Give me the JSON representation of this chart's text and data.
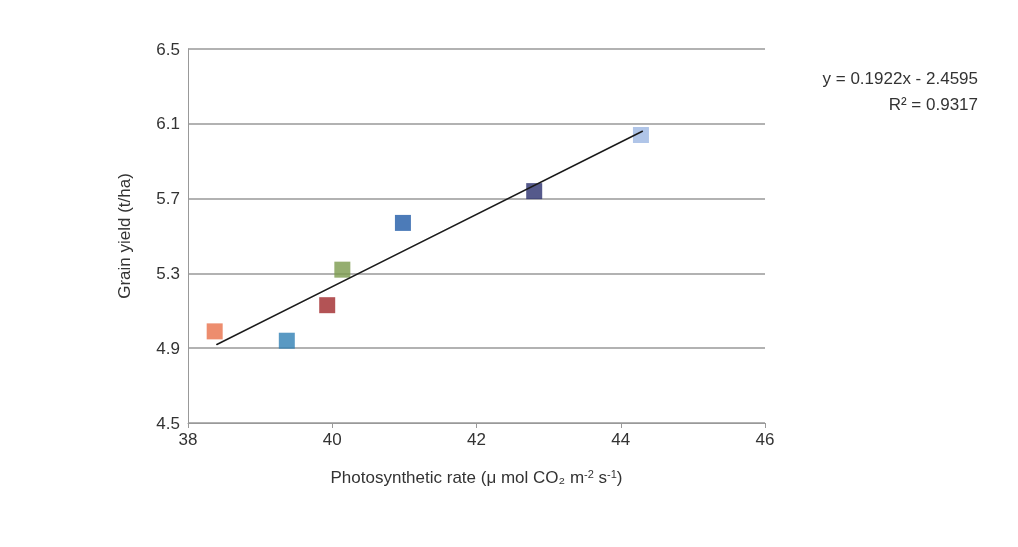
{
  "chart_data": {
    "type": "scatter",
    "xlabel": "Photosynthetic rate (μ mol CO₂ m$^{-2}$ s$^{-1}$)",
    "ylabel": "Grain yield (t/ha)",
    "annotations": [
      "y = 0.1922x - 2.4595",
      "R² = 0.9317"
    ],
    "series": [
      {
        "marker": "square",
        "x": [
          38.37,
          39.37,
          39.93,
          40.14,
          40.98,
          42.8,
          44.28
        ],
        "values": [
          4.99,
          4.94,
          5.13,
          5.32,
          5.57,
          5.74,
          6.04
        ],
        "colors": [
          "#e8704a",
          "#2f80b4",
          "#a0282a",
          "#7b9a4c",
          "#1f5aa6",
          "#2b2f6e",
          "#9cb6e2"
        ]
      },
      {
        "type": "line",
        "marker": "none",
        "line_style": "solid",
        "color": "#1a1a1a",
        "x": [
          38.4,
          44.3
        ],
        "values": [
          4.92,
          6.06
        ]
      }
    ],
    "xlim": [
      38,
      46
    ],
    "xticks": [
      38,
      40,
      42,
      44,
      46
    ],
    "ylim": [
      4.5,
      6.5
    ],
    "yticks": [
      4.5,
      4.9,
      5.3,
      5.7,
      6.1,
      6.5
    ],
    "grid": "y"
  }
}
